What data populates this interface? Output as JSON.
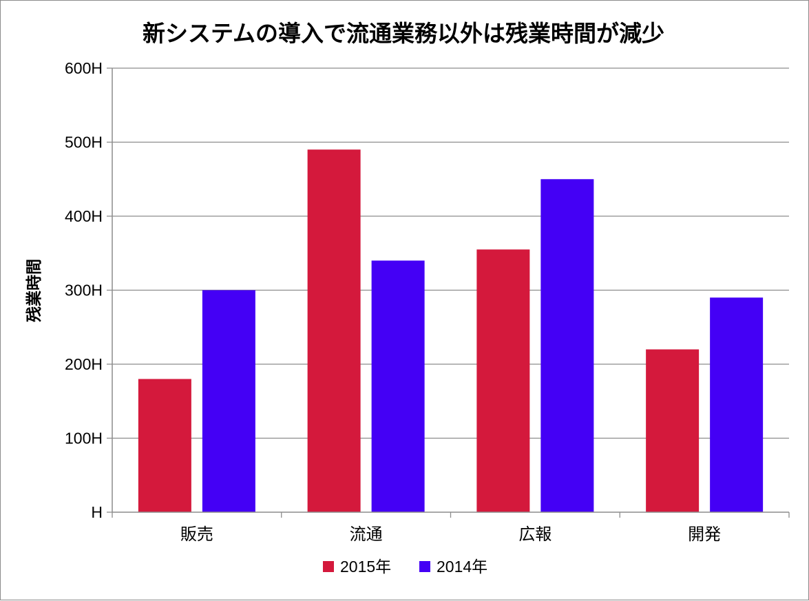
{
  "chart_data": {
    "type": "bar",
    "title": "新システムの導入で流通業務以外は残業時間が減少",
    "xlabel": "",
    "ylabel": "残業時間",
    "categories": [
      "販売",
      "流通",
      "広報",
      "開発"
    ],
    "series": [
      {
        "name": "2015年",
        "color": "#d4193c",
        "values": [
          180,
          490,
          355,
          220
        ]
      },
      {
        "name": "2014年",
        "color": "#4400f5",
        "values": [
          300,
          340,
          450,
          290
        ]
      }
    ],
    "ylim": [
      0,
      600
    ],
    "yticks": [
      0,
      100,
      200,
      300,
      400,
      500,
      600
    ],
    "ytick_labels": [
      "H",
      "100H",
      "200H",
      "300H",
      "400H",
      "500H",
      "600H"
    ],
    "grid": true,
    "legend_position": "bottom"
  }
}
